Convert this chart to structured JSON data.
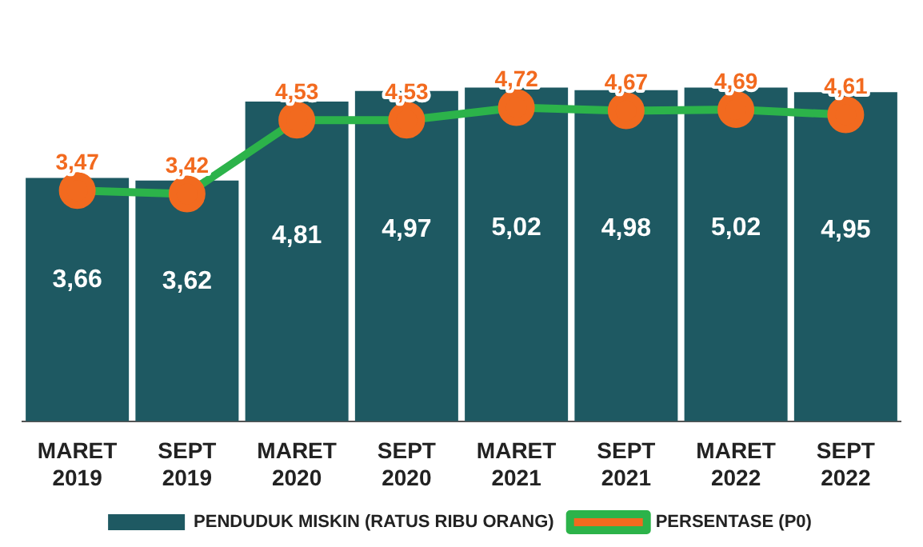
{
  "chart_data": {
    "type": "bar",
    "categories": [
      "MARET 2019",
      "SEPT 2019",
      "MARET 2020",
      "SEPT 2020",
      "MARET 2021",
      "SEPT 2021",
      "MARET 2022",
      "SEPT 2022"
    ],
    "series": [
      {
        "name": "PENDUDUK MISKIN (RATUS RIBU ORANG)",
        "color": "#1e5962",
        "values": [
          3.66,
          3.62,
          4.81,
          4.97,
          5.02,
          4.98,
          5.02,
          4.95
        ],
        "value_labels": [
          "3,66",
          "3,62",
          "4,81",
          "4,97",
          "5,02",
          "4,98",
          "5,02",
          "4,95"
        ]
      },
      {
        "name": "PERSENTASE (P0)",
        "type": "line",
        "color": "#2cb34a",
        "colors": [
          "#f26a1f",
          "#f26a1f",
          "#f26a1f",
          "#f26a1f",
          "#f26a1f",
          "#f26a1f",
          "#f26a1f",
          "#f26a1f"
        ],
        "values": [
          3.47,
          3.42,
          4.53,
          4.53,
          4.72,
          4.67,
          4.69,
          4.61
        ],
        "value_labels": [
          "3,47",
          "3,42",
          "4,53",
          "4,53",
          "4,72",
          "4,67",
          "4,69",
          "4,61"
        ]
      }
    ],
    "tick_labels": "x",
    "grid": false,
    "legend": "bottom",
    "marker": "circle"
  }
}
